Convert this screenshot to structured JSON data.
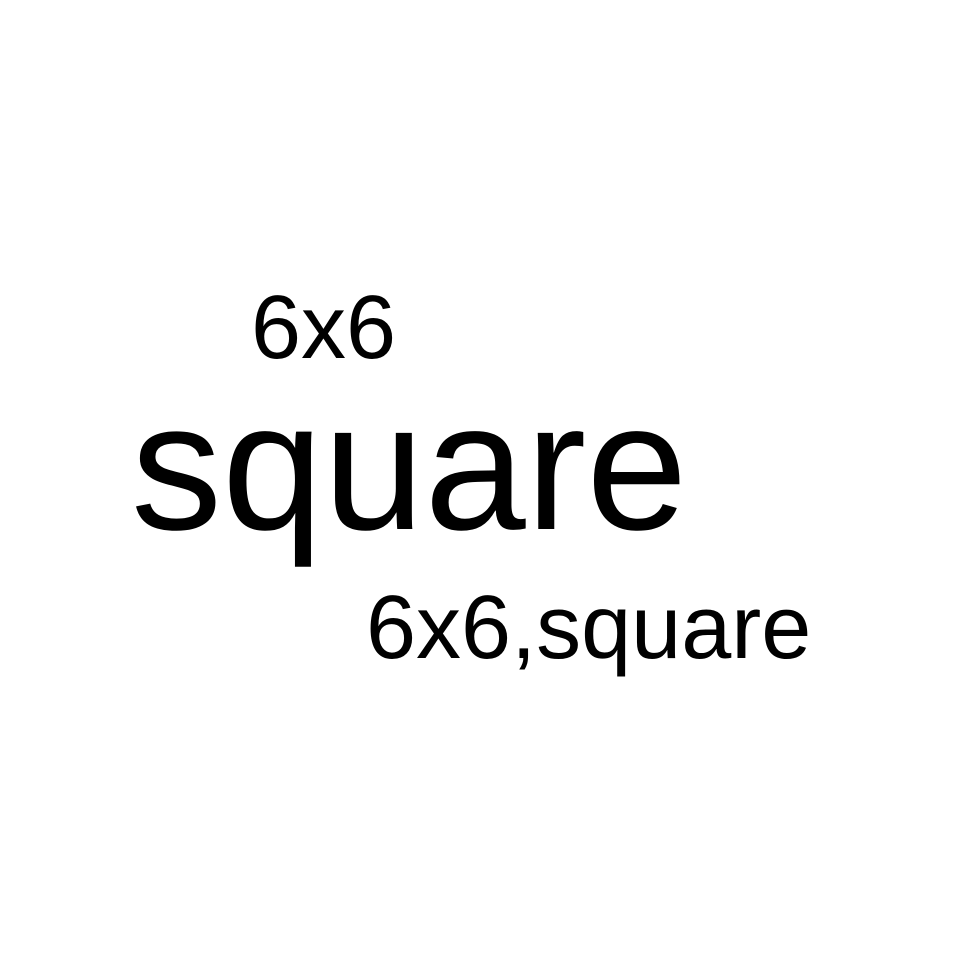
{
  "texts": {
    "dimension": "6x6",
    "shape": "square",
    "combined": "6x6,square"
  },
  "colors": {
    "background": "#ffffff",
    "text": "#000000"
  }
}
